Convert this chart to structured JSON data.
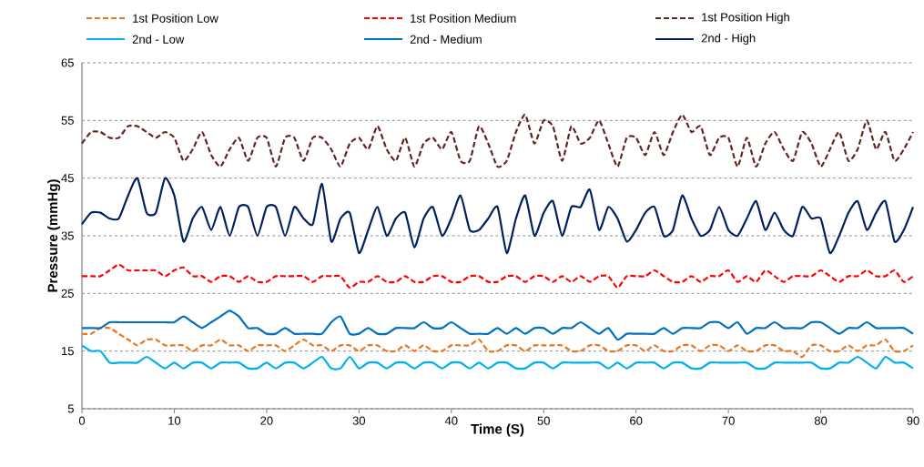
{
  "chart_data": {
    "type": "line",
    "xlabel": "Time (S)",
    "ylabel": "Pressure (mmHg)",
    "x": [
      0,
      1,
      2,
      3,
      4,
      5,
      6,
      7,
      8,
      9,
      10,
      11,
      12,
      13,
      14,
      15,
      16,
      17,
      18,
      19,
      20,
      21,
      22,
      23,
      24,
      25,
      26,
      27,
      28,
      29,
      30,
      31,
      32,
      33,
      34,
      35,
      36,
      37,
      38,
      39,
      40,
      41,
      42,
      43,
      44,
      45,
      46,
      47,
      48,
      49,
      50,
      51,
      52,
      53,
      54,
      55,
      56,
      57,
      58,
      59,
      60,
      61,
      62,
      63,
      64,
      65,
      66,
      67,
      68,
      69,
      70,
      71,
      72,
      73,
      74,
      75,
      76,
      77,
      78,
      79,
      80,
      81,
      82,
      83,
      84,
      85,
      86,
      87,
      88,
      89,
      90
    ],
    "series": [
      {
        "name": "1st Position Low",
        "color": "#e87722",
        "line_style": "dashed",
        "values": [
          18,
          18,
          19,
          19,
          18,
          17,
          16,
          17,
          17,
          16,
          16,
          16,
          15,
          16,
          16,
          17,
          16,
          16,
          15,
          16,
          16,
          16,
          15,
          16,
          17,
          16,
          16,
          15,
          16,
          16,
          15,
          16,
          16,
          15,
          15,
          16,
          15,
          16,
          15,
          15,
          16,
          16,
          16,
          17,
          15,
          15,
          16,
          16,
          15,
          16,
          16,
          16,
          16,
          15,
          15,
          16,
          16,
          15,
          15,
          16,
          16,
          15,
          16,
          15,
          15,
          16,
          16,
          15,
          16,
          16,
          15,
          16,
          15,
          15,
          16,
          16,
          15,
          15,
          14,
          16,
          16,
          15,
          15,
          16,
          15,
          16,
          16,
          17,
          15,
          15,
          16
        ]
      },
      {
        "name": "1st Position Medium",
        "color": "#ff0000",
        "line_style": "dashed",
        "values": [
          28,
          28,
          28,
          29,
          30,
          29,
          29,
          29,
          29,
          28,
          29,
          29.5,
          28,
          28,
          27,
          28,
          28,
          27,
          28,
          27,
          27,
          28,
          28,
          28,
          28,
          27,
          28,
          28,
          28,
          26,
          27,
          27,
          28,
          27,
          27,
          28,
          27,
          27,
          28,
          28,
          27,
          27,
          28,
          28,
          27,
          27,
          28,
          28,
          27,
          28,
          28,
          27,
          28,
          27,
          28,
          27,
          28,
          28,
          26,
          28,
          28,
          28,
          29,
          28,
          27,
          27,
          28,
          27,
          28,
          28,
          29,
          27,
          28,
          27,
          29,
          28,
          27,
          28,
          28,
          28,
          29,
          28,
          27,
          28,
          28,
          29,
          28,
          28,
          29,
          27,
          28
        ]
      },
      {
        "name": "1st Position High",
        "color": "#632523",
        "line_style": "dashed",
        "values": [
          51,
          53,
          53,
          52,
          52,
          54,
          54,
          53,
          52,
          53,
          52,
          48,
          50,
          53,
          49,
          47,
          50,
          52,
          48,
          52,
          52,
          47,
          52,
          52,
          48,
          52,
          52,
          50,
          47,
          51,
          52,
          50,
          54,
          50,
          48,
          52,
          47,
          51,
          52,
          50,
          53,
          48,
          48,
          54,
          51,
          47,
          48,
          53,
          56,
          51,
          55,
          54,
          48,
          54,
          51,
          52,
          55,
          51,
          47,
          52,
          52,
          49,
          53,
          49,
          53,
          56,
          53,
          54,
          49,
          52,
          52,
          47,
          52,
          47,
          51,
          53,
          50,
          48,
          53,
          51,
          47,
          50,
          53,
          48,
          50,
          55,
          50,
          53,
          48,
          50,
          53
        ]
      },
      {
        "name": "2nd - Low",
        "color": "#00b0f0",
        "line_style": "solid",
        "values": [
          16,
          15,
          15,
          13,
          13,
          13,
          13,
          14,
          13,
          12,
          13,
          12,
          13,
          13,
          12,
          13,
          13,
          13,
          12,
          12,
          13,
          12,
          13,
          13,
          12,
          13,
          14,
          12,
          12,
          14,
          12,
          13,
          13,
          12,
          13,
          13,
          12,
          13,
          13,
          12,
          13,
          13,
          12,
          13,
          12,
          13,
          13,
          12,
          12,
          13,
          13,
          12,
          13,
          13,
          13,
          13,
          13,
          12,
          13,
          12,
          13,
          13,
          13,
          12,
          13,
          13,
          12,
          12,
          13,
          13,
          13,
          13,
          13,
          12,
          12,
          13,
          13,
          13,
          13,
          13,
          12,
          12,
          13,
          13,
          14,
          13,
          12,
          14,
          13,
          13,
          12
        ]
      },
      {
        "name": "2nd - Medium",
        "color": "#0070c0",
        "line_style": "solid",
        "values": [
          19,
          19,
          19,
          20,
          20,
          20,
          20,
          20,
          20,
          20,
          20,
          21,
          20,
          19,
          20,
          21,
          22,
          21,
          19,
          19,
          18,
          18,
          19,
          18,
          18,
          18,
          18,
          20,
          21,
          18,
          18,
          19,
          18,
          18,
          19,
          19,
          19,
          20,
          19,
          19,
          20,
          19,
          18,
          18,
          18,
          19,
          18,
          19,
          18,
          19,
          19,
          18,
          19,
          19,
          20,
          19,
          18,
          19,
          17,
          18,
          18,
          18,
          18,
          19,
          18,
          19,
          19,
          19,
          20,
          20,
          19,
          20,
          18,
          19,
          19,
          20,
          19,
          19,
          19,
          20,
          20,
          19,
          18,
          19,
          19,
          20,
          19,
          19,
          19,
          19,
          18
        ]
      },
      {
        "name": "2nd - High",
        "color": "#002060",
        "line_style": "solid",
        "values": [
          37,
          39,
          39,
          38,
          38,
          42,
          45,
          39,
          39,
          45,
          42,
          34,
          38,
          40,
          36,
          40,
          35,
          40,
          40,
          35,
          40,
          40,
          35,
          40,
          38,
          37,
          44,
          34,
          38,
          39,
          32,
          36,
          40,
          35,
          38,
          39,
          33,
          38,
          40,
          35,
          38,
          42,
          36,
          36,
          38,
          40,
          32,
          38,
          42,
          35,
          39,
          41,
          35,
          40,
          40,
          43,
          36,
          40,
          38,
          34,
          36,
          39,
          40,
          35,
          36,
          42,
          38,
          35,
          36,
          40,
          36,
          35,
          38,
          41,
          36,
          39,
          36,
          35,
          40,
          38,
          38,
          32,
          35,
          39,
          41,
          36,
          39,
          41,
          34,
          36,
          40
        ]
      }
    ],
    "xlim": [
      0,
      90
    ],
    "xticks": [
      0,
      10,
      20,
      30,
      40,
      50,
      60,
      70,
      80,
      90
    ],
    "ylim": [
      5,
      65
    ],
    "yticks": [
      5,
      15,
      25,
      35,
      45,
      55,
      65
    ],
    "grid": "y",
    "legend": "top"
  }
}
